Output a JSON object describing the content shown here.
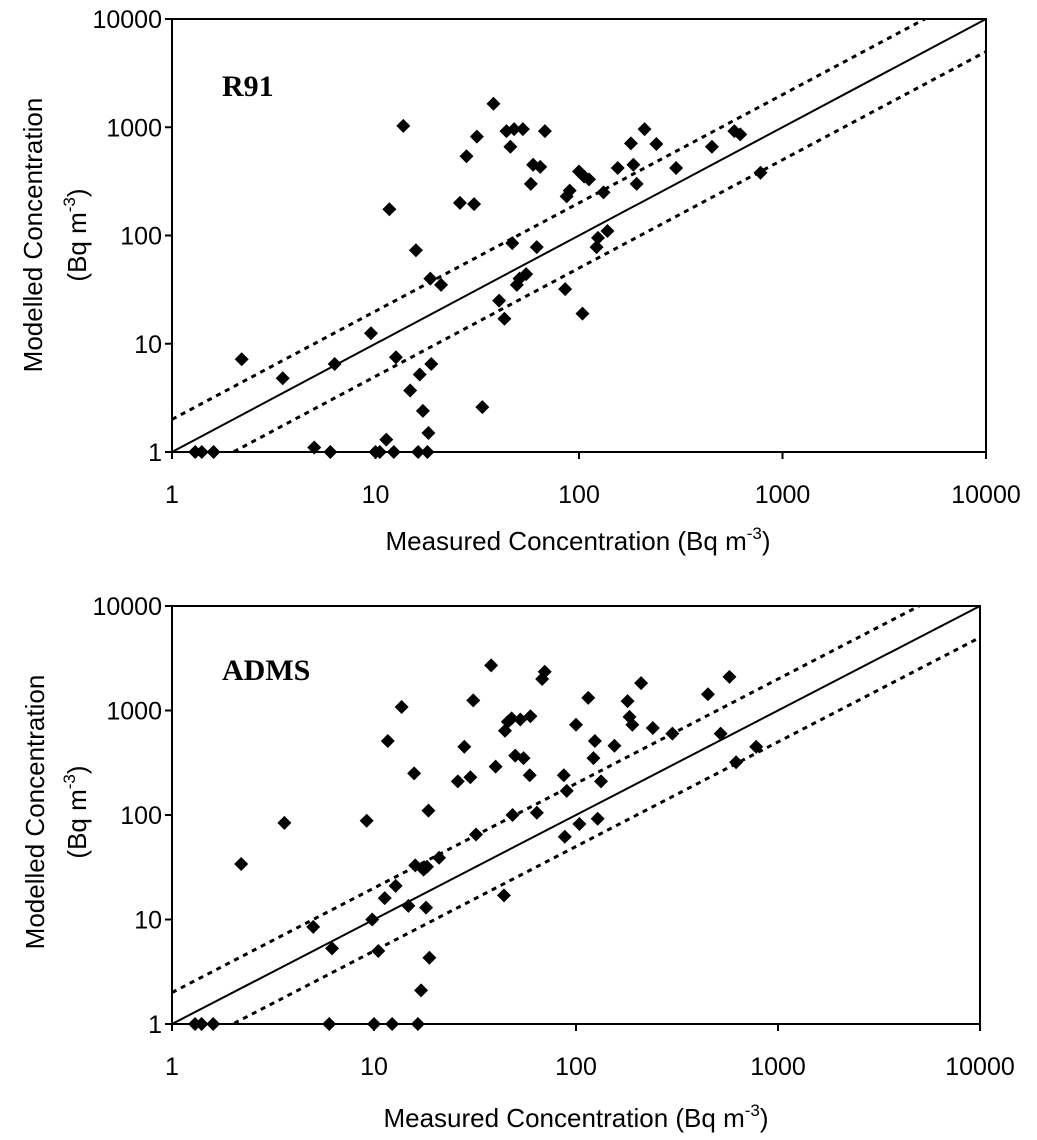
{
  "chart_data": [
    {
      "type": "scatter",
      "panel_label": "R91",
      "xlabel": "Measured Concentration (Bq m",
      "xlabel_sup": "-3",
      "xlabel_end": ")",
      "ylabel_line1": "Modelled Concentration",
      "ylabel_line2": "(Bq m",
      "ylabel_sup": "-3",
      "ylabel_end": ")",
      "xscale": "log",
      "yscale": "log",
      "xlim": [
        1,
        10000
      ],
      "ylim": [
        1,
        10000
      ],
      "xticks": [
        "1",
        "10",
        "100",
        "1000",
        "10000"
      ],
      "yticks": [
        "1",
        "10",
        "100",
        "1000",
        "10000"
      ],
      "grid": false,
      "reference_lines": [
        {
          "style": "solid",
          "factor": 1
        },
        {
          "style": "dotted",
          "factor": 2
        },
        {
          "style": "dotted",
          "factor": 0.5
        }
      ],
      "points": [
        [
          1.3,
          1
        ],
        [
          1.4,
          1
        ],
        [
          1.6,
          1
        ],
        [
          2.2,
          7.2
        ],
        [
          3.5,
          4.8
        ],
        [
          5,
          1.1
        ],
        [
          6,
          1
        ],
        [
          6.3,
          6.5
        ],
        [
          9.5,
          12.5
        ],
        [
          10,
          1
        ],
        [
          10.5,
          1
        ],
        [
          11.3,
          1.3
        ],
        [
          11.7,
          175
        ],
        [
          12.3,
          1
        ],
        [
          12.6,
          7.5
        ],
        [
          13.7,
          1030
        ],
        [
          14.8,
          3.7
        ],
        [
          15.8,
          73
        ],
        [
          16.2,
          1
        ],
        [
          16.5,
          5.2
        ],
        [
          17.1,
          2.4
        ],
        [
          18,
          1
        ],
        [
          18.2,
          1.5
        ],
        [
          18.6,
          40
        ],
        [
          18.8,
          6.5
        ],
        [
          21,
          35
        ],
        [
          26,
          200
        ],
        [
          28,
          540
        ],
        [
          30.5,
          195
        ],
        [
          31.5,
          820
        ],
        [
          33.5,
          2.6
        ],
        [
          38,
          1650
        ],
        [
          40.5,
          25
        ],
        [
          43,
          17
        ],
        [
          44,
          920
        ],
        [
          46,
          660
        ],
        [
          47,
          85
        ],
        [
          48,
          960
        ],
        [
          49.5,
          35
        ],
        [
          51,
          40
        ],
        [
          53,
          960
        ],
        [
          55,
          44
        ],
        [
          58,
          300
        ],
        [
          59.5,
          450
        ],
        [
          62,
          78
        ],
        [
          64.5,
          430
        ],
        [
          68,
          920
        ],
        [
          85.5,
          32
        ],
        [
          87,
          230
        ],
        [
          90,
          260
        ],
        [
          100,
          390
        ],
        [
          104,
          19
        ],
        [
          106,
          350
        ],
        [
          112,
          330
        ],
        [
          122,
          78
        ],
        [
          124,
          95
        ],
        [
          132,
          250
        ],
        [
          138,
          110
        ],
        [
          155,
          420
        ],
        [
          180,
          710
        ],
        [
          185,
          450
        ],
        [
          192,
          300
        ],
        [
          210,
          960
        ],
        [
          240,
          700
        ],
        [
          300,
          420
        ],
        [
          450,
          660
        ],
        [
          580,
          920
        ],
        [
          620,
          860
        ],
        [
          780,
          380
        ]
      ]
    },
    {
      "type": "scatter",
      "panel_label": "ADMS",
      "xlabel": "Measured Concentration (Bq m",
      "xlabel_sup": "-3",
      "xlabel_end": ")",
      "ylabel_line1": "Modelled Concentration",
      "ylabel_line2": "(Bq m",
      "ylabel_sup": "-3",
      "ylabel_end": ")",
      "xscale": "log",
      "yscale": "log",
      "xlim": [
        1,
        10000
      ],
      "ylim": [
        1,
        10000
      ],
      "xticks": [
        "1",
        "10",
        "100",
        "1000",
        "10000"
      ],
      "yticks": [
        "1",
        "10",
        "100",
        "1000",
        "10000"
      ],
      "grid": false,
      "reference_lines": [
        {
          "style": "solid",
          "factor": 1
        },
        {
          "style": "dotted",
          "factor": 2
        },
        {
          "style": "dotted",
          "factor": 0.5
        }
      ],
      "points": [
        [
          1.3,
          1
        ],
        [
          1.4,
          1
        ],
        [
          1.6,
          1
        ],
        [
          2.2,
          34
        ],
        [
          3.6,
          84
        ],
        [
          5,
          8.5
        ],
        [
          6,
          1
        ],
        [
          6.2,
          5.3
        ],
        [
          9.2,
          88
        ],
        [
          9.8,
          10
        ],
        [
          10,
          1
        ],
        [
          10.5,
          5
        ],
        [
          11.3,
          16
        ],
        [
          11.7,
          510
        ],
        [
          12.3,
          1
        ],
        [
          12.8,
          21
        ],
        [
          13.7,
          1080
        ],
        [
          14.8,
          13.5
        ],
        [
          15.8,
          250
        ],
        [
          16,
          33
        ],
        [
          16.5,
          1
        ],
        [
          17.1,
          2.1
        ],
        [
          17.6,
          30
        ],
        [
          18.1,
          13
        ],
        [
          18.3,
          32
        ],
        [
          18.6,
          110
        ],
        [
          18.8,
          4.3
        ],
        [
          21,
          39
        ],
        [
          26,
          210
        ],
        [
          28,
          450
        ],
        [
          30,
          230
        ],
        [
          31,
          1250
        ],
        [
          32,
          65
        ],
        [
          38,
          2700
        ],
        [
          40,
          290
        ],
        [
          44,
          17
        ],
        [
          44.5,
          640
        ],
        [
          46,
          780
        ],
        [
          48,
          840
        ],
        [
          48.5,
          100
        ],
        [
          50,
          370
        ],
        [
          53,
          820
        ],
        [
          55,
          350
        ],
        [
          59,
          240
        ],
        [
          59.5,
          880
        ],
        [
          64,
          105
        ],
        [
          68,
          2000
        ],
        [
          70,
          2350
        ],
        [
          87,
          240
        ],
        [
          88,
          62
        ],
        [
          90,
          170
        ],
        [
          100,
          730
        ],
        [
          104,
          82
        ],
        [
          115,
          1320
        ],
        [
          122,
          350
        ],
        [
          124,
          510
        ],
        [
          128,
          92
        ],
        [
          133,
          210
        ],
        [
          155,
          460
        ],
        [
          180,
          1230
        ],
        [
          184,
          870
        ],
        [
          190,
          730
        ],
        [
          210,
          1830
        ],
        [
          240,
          680
        ],
        [
          300,
          600
        ],
        [
          450,
          1430
        ],
        [
          520,
          600
        ],
        [
          575,
          2100
        ],
        [
          620,
          320
        ],
        [
          780,
          450
        ]
      ]
    }
  ]
}
